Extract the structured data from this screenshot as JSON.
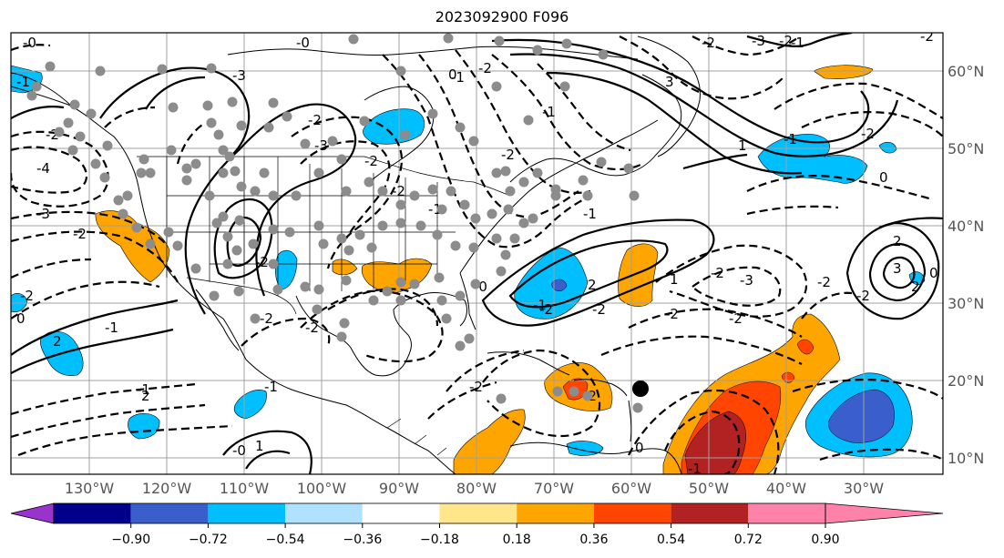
{
  "title": "2023092900 F096",
  "map": {
    "longitude_labels": [
      "130°W",
      "120°W",
      "110°W",
      "100°W",
      "90°W",
      "80°W",
      "70°W",
      "60°W",
      "50°W",
      "40°W",
      "30°W"
    ],
    "latitude_labels": [
      "60°N",
      "50°N",
      "40°N",
      "30°N",
      "20°N",
      "10°N"
    ],
    "contour_labels": [
      "-0",
      "-1",
      "-2",
      "-4",
      "-3",
      "-2",
      "2",
      "-1",
      "0",
      "-2",
      "-0",
      "-3",
      "-2",
      "-3",
      "-2",
      "-2",
      "-2",
      "2",
      "-2",
      "-2",
      "-1",
      "-1",
      "-2",
      "0",
      "-1",
      "-2",
      "-1",
      "-0",
      "-1",
      "-2",
      "-2",
      "2",
      "3",
      "-3",
      "-2",
      "-2",
      "-1",
      "-2",
      "-2",
      "0",
      "-2",
      "-3",
      "-1",
      "-2",
      "3",
      "2",
      "-2",
      "-2",
      "-2",
      "1",
      "-1",
      "2",
      "0",
      "1",
      "-0",
      "-1",
      "-1",
      "0",
      "-2",
      "-2",
      "1"
    ]
  },
  "colorbar": {
    "tick_labels": [
      "−0.90",
      "−0.72",
      "−0.54",
      "−0.36",
      "−0.18",
      "0.18",
      "0.36",
      "0.54",
      "0.72",
      "0.90"
    ],
    "colors": [
      "#9a32cd",
      "#00008b",
      "#3a5fcd",
      "#00bfff",
      "#b0e2ff",
      "#ffffff",
      "#ffe68b",
      "#ffa500",
      "#ff4500",
      "#b22222",
      "#ff82ab"
    ]
  },
  "markers": {
    "large_point_color": "#000000",
    "small_point_color": "#8c8c8c"
  }
}
